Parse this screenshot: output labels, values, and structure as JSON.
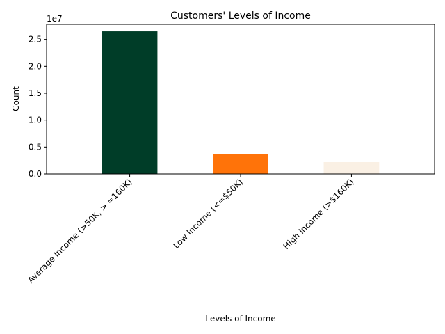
{
  "chart_data": {
    "type": "bar",
    "title": "Customers' Levels of Income",
    "xlabel": "Levels of Income",
    "ylabel": "Count",
    "y_offset_label": "1e7",
    "categories": [
      "Average Income (>50K, > =160K)",
      "Low Income (<=$50K)",
      "High Income (>$160K)"
    ],
    "values": [
      26500000,
      3700000,
      2200000
    ],
    "colors": [
      "#003d28",
      "#ff7309",
      "#faf0e4"
    ],
    "ylim": [
      0,
      27800000
    ],
    "yticks": [
      0,
      5000000,
      10000000,
      15000000,
      20000000,
      25000000
    ],
    "ytick_labels": [
      "0.0",
      "0.5",
      "1.0",
      "1.5",
      "2.0",
      "2.5"
    ],
    "grid": false,
    "legend": "none"
  }
}
